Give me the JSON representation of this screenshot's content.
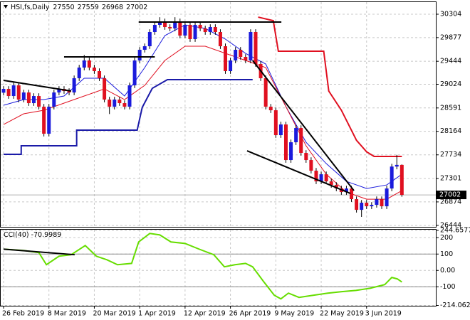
{
  "chart_data": [
    {
      "type": "candlestick",
      "title": "HSI,fs,Daily",
      "categories": [
        "26 Feb 2019",
        null,
        null,
        null,
        null,
        null,
        null,
        null,
        null,
        "8 Mar 2019",
        null,
        null,
        null,
        null,
        null,
        null,
        null,
        null,
        "20 Mar 2019",
        null,
        null,
        null,
        null,
        null,
        null,
        null,
        null,
        "1 Apr 2019",
        null,
        null,
        null,
        null,
        null,
        null,
        null,
        null,
        "12 Apr 2019",
        null,
        null,
        null,
        null,
        null,
        null,
        null,
        null,
        "26 Apr 2019",
        null,
        null,
        null,
        null,
        null,
        null,
        null,
        null,
        "9 May 2019",
        null,
        null,
        null,
        null,
        null,
        null,
        null,
        null,
        "22 May 2019",
        null,
        null,
        null,
        null,
        null,
        null,
        null,
        null,
        "3 Jun 2019",
        null,
        null,
        null,
        null,
        null,
        null,
        null
      ],
      "open": [
        28870,
        28939,
        28809,
        29004,
        28744,
        28874,
        28679,
        28809,
        28614,
        28120,
        28614,
        28874,
        28939,
        28900,
        28874,
        29134,
        29329,
        29459,
        29329,
        29264,
        29134,
        28744,
        28614,
        28744,
        28679,
        28614,
        29004,
        29459,
        29654,
        29719,
        29979,
        30109,
        30174,
        30070,
        30044,
        30174,
        29914,
        30109,
        29849,
        30109,
        30044,
        29979,
        30070,
        29979,
        29719,
        29264,
        29459,
        29654,
        29524,
        29459,
        29979,
        29394,
        29134,
        28614,
        28549,
        28094,
        28289,
        27639,
        27964,
        28224,
        27769,
        27639,
        27444,
        27249,
        27379,
        27249,
        27184,
        27119,
        27054,
        27119,
        26924,
        26729,
        26859,
        26794,
        26820,
        26924,
        26794,
        27119,
        27520,
        27550
      ],
      "high": [
        28989,
        28989,
        29054,
        29054,
        28924,
        28924,
        28859,
        28859,
        28664,
        28664,
        28924,
        28989,
        28989,
        28950,
        29184,
        29379,
        29559,
        29509,
        29379,
        29314,
        29184,
        28794,
        28794,
        28794,
        28729,
        29054,
        29509,
        29704,
        29769,
        30029,
        30159,
        30250,
        30224,
        30120,
        30250,
        30224,
        30159,
        30159,
        30159,
        30159,
        30094,
        30120,
        30120,
        30029,
        29769,
        29509,
        29704,
        29704,
        29574,
        30029,
        30029,
        29444,
        29184,
        28664,
        28599,
        28339,
        28339,
        28014,
        28274,
        28274,
        27819,
        27689,
        27494,
        27429,
        27429,
        27299,
        27234,
        27169,
        27169,
        27169,
        26974,
        26909,
        26909,
        26870,
        26974,
        26974,
        27169,
        27570,
        27734,
        27559
      ],
      "low": [
        28820,
        28759,
        28759,
        28694,
        28694,
        28629,
        28629,
        28564,
        28070,
        28070,
        28564,
        28824,
        28850,
        28824,
        28824,
        29084,
        29279,
        29279,
        29214,
        29084,
        28694,
        28480,
        28564,
        28629,
        28564,
        28564,
        28954,
        29409,
        29604,
        29669,
        29929,
        30059,
        30020,
        29994,
        29994,
        29864,
        29864,
        29799,
        29799,
        29994,
        29929,
        29929,
        29929,
        29669,
        29214,
        29214,
        29409,
        29474,
        29409,
        29409,
        29344,
        29084,
        28564,
        28499,
        28044,
        28044,
        27589,
        27589,
        27914,
        27719,
        27589,
        27394,
        27199,
        27199,
        27199,
        27134,
        27069,
        27004,
        27004,
        26874,
        26679,
        26600,
        26744,
        26744,
        26770,
        26744,
        26744,
        27069,
        27470,
        26968
      ],
      "close": [
        28939,
        28809,
        29004,
        28744,
        28874,
        28679,
        28809,
        28614,
        28120,
        28614,
        28874,
        28939,
        28900,
        28874,
        29134,
        29329,
        29459,
        29329,
        29264,
        29134,
        28744,
        28614,
        28744,
        28679,
        28614,
        29004,
        29459,
        29654,
        29719,
        29979,
        30109,
        30174,
        30070,
        30044,
        30174,
        29914,
        30109,
        29849,
        30109,
        30044,
        29979,
        30070,
        29979,
        29719,
        29264,
        29459,
        29654,
        29524,
        29459,
        29979,
        29394,
        29134,
        28614,
        28549,
        28094,
        28289,
        27639,
        27964,
        28224,
        27769,
        27639,
        27444,
        27249,
        27379,
        27249,
        27184,
        27119,
        27054,
        27119,
        26924,
        26729,
        26859,
        26794,
        26820,
        26924,
        26794,
        27119,
        27520,
        27550,
        27002
      ],
      "up_color": "#1a1adc",
      "down_color": "#e01020",
      "series": [
        {
          "color": "#1a1adc",
          "width": 1,
          "x": [
            0,
            4,
            8,
            12,
            16,
            20,
            24,
            28,
            32,
            36,
            40,
            44,
            48,
            52,
            56,
            60,
            64,
            68,
            72,
            76,
            79
          ],
          "values": [
            28640,
            28744,
            28744,
            28809,
            29134,
            29134,
            28809,
            29329,
            29914,
            30109,
            30044,
            29849,
            29589,
            29394,
            28614,
            27964,
            27574,
            27249,
            27119,
            27184,
            27379
          ]
        },
        {
          "color": "#e01020",
          "width": 1,
          "x": [
            0,
            4,
            8,
            12,
            16,
            20,
            24,
            28,
            32,
            36,
            40,
            44,
            48,
            52,
            56,
            60,
            64,
            68,
            72,
            76,
            79
          ],
          "values": [
            28289,
            28484,
            28549,
            28679,
            28809,
            28939,
            28744,
            29004,
            29459,
            29719,
            29719,
            29589,
            29459,
            29329,
            28614,
            27899,
            27379,
            27054,
            26924,
            26924,
            27080
          ]
        },
        {
          "color": "#1a1aa8",
          "width": 2,
          "x": [
            0,
            3.5,
            3.5,
            14.5,
            14.5,
            26.5,
            27.5,
            29.5,
            32.5,
            49.4
          ],
          "values": [
            27743,
            27743,
            27899,
            27899,
            28185,
            28185,
            28600,
            28950,
            29108,
            29108
          ]
        },
        {
          "color": "#e01020",
          "width": 2,
          "x": [
            50.5,
            53.5,
            54.5,
            63.5,
            64.5,
            67,
            70,
            72,
            73.5,
            79
          ],
          "values": [
            30251,
            30186,
            29628,
            29628,
            28900,
            28550,
            28000,
            27790,
            27705,
            27705
          ]
        }
      ],
      "trendlines": [
        {
          "x": [
            0,
            13.4
          ],
          "values": [
            29095,
            28900
          ]
        },
        {
          "x": [
            26.8,
            55.1
          ],
          "values": [
            30161,
            30161
          ]
        },
        {
          "x": [
            12,
            30
          ],
          "values": [
            29524,
            29524
          ]
        },
        {
          "x": [
            49.4,
            69.5
          ],
          "values": [
            29459,
            27080
          ]
        },
        {
          "x": [
            48.3,
            68.8
          ],
          "values": [
            27808,
            27028
          ]
        }
      ],
      "ylim": [
        26431,
        30499
      ],
      "yticks": [
        30304,
        29877,
        29444,
        29024,
        28591,
        28164,
        27734,
        27301,
        26874,
        26444
      ],
      "grid": true
    },
    {
      "type": "line",
      "title": "CCI(40)",
      "series": [
        {
          "color": "#66dd00",
          "x": [
            0,
            4,
            7,
            8.5,
            11,
            13.4,
            16.2,
            18.4,
            20.5,
            22.6,
            25.4,
            26.8,
            29,
            31,
            33.2,
            36,
            38.8,
            41.7,
            43.8,
            45.9,
            48,
            49.4,
            51.5,
            53.7,
            55,
            56.5,
            58.6,
            61.4,
            64.3,
            67.1,
            69.9,
            72.7,
            75.6,
            77,
            78.1,
            79
          ],
          "values": [
            130,
            122,
            109,
            35,
            87,
            96,
            152,
            87,
            65,
            35,
            43,
            174,
            226,
            217,
            174,
            165,
            130,
            96,
            22,
            35,
            43,
            22,
            -65,
            -152,
            -174,
            -139,
            -165,
            -152,
            -139,
            -130,
            -122,
            -109,
            -87,
            -43,
            -52,
            -70.9989
          ]
        }
      ],
      "trendlines": [
        {
          "x": [
            0,
            14.1
          ],
          "values": [
            130,
            96
          ]
        }
      ],
      "levels": [
        100,
        -100
      ],
      "ylim": [
        -214.062,
        244.6577
      ],
      "yticks": [
        244.6577,
        200,
        100,
        {
          "value": 0,
          "label": "0.00"
        },
        -100,
        -214.062
      ],
      "grid": true
    }
  ]
}
